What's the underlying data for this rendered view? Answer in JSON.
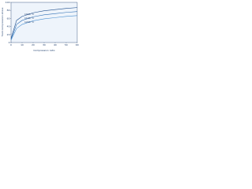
{
  "chart_data": {
    "type": "line",
    "x_label": "Compression ratio",
    "y_label": "Yield compression stress",
    "x": [
      0,
      5,
      10,
      20,
      30,
      40,
      50,
      60
    ],
    "series": [
      {
        "name": "1000 °C",
        "color": "#1f4e8c",
        "values": [
          10,
          55,
          65,
          74,
          79,
          82,
          85,
          87
        ]
      },
      {
        "name": "1100 °C",
        "color": "#2f6fb4",
        "values": [
          8,
          45,
          55,
          64,
          69,
          72,
          75,
          77
        ]
      },
      {
        "name": "1200 °C",
        "color": "#4a8fd0",
        "values": [
          6,
          35,
          45,
          54,
          59,
          62,
          65,
          67
        ]
      }
    ],
    "xlim": [
      0,
      60
    ],
    "xticks": [
      0,
      10,
      20,
      30,
      40,
      50,
      60
    ],
    "ylim": [
      0,
      100
    ],
    "yticks": [
      0,
      20,
      40,
      60,
      80,
      100
    ],
    "grid": false
  }
}
